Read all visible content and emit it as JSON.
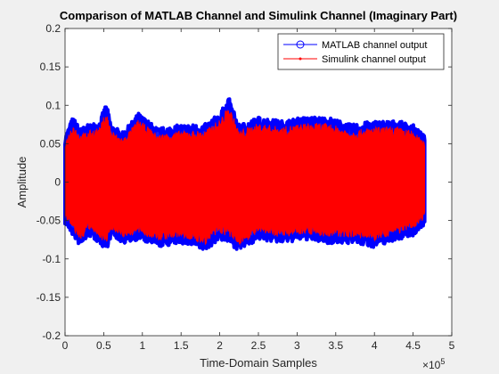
{
  "chart_data": {
    "type": "line",
    "title": "Comparison of MATLAB Channel and Simulink Channel (Imaginary Part)",
    "xlabel": "Time-Domain Samples",
    "ylabel": "Amplitude",
    "x_exponent_label": "×10",
    "x_exponent_value": "5",
    "xlim": [
      0,
      500000
    ],
    "ylim": [
      -0.2,
      0.2
    ],
    "x_ticks": [
      0,
      50000,
      100000,
      150000,
      200000,
      250000,
      300000,
      350000,
      400000,
      450000,
      500000
    ],
    "x_tick_labels": [
      "0",
      "0.5",
      "1",
      "1.5",
      "2",
      "2.5",
      "3",
      "3.5",
      "4",
      "4.5",
      "5"
    ],
    "y_ticks": [
      -0.2,
      -0.15,
      -0.1,
      -0.05,
      0,
      0.05,
      0.1,
      0.15,
      0.2
    ],
    "y_tick_labels": [
      "-0.2",
      "-0.15",
      "-0.1",
      "-0.05",
      "0",
      "0.05",
      "0.1",
      "0.15",
      "0.2"
    ],
    "grid": false,
    "legend_position": "top-right",
    "series": [
      {
        "name": "MATLAB channel output",
        "color": "#0000ff",
        "marker": "circle",
        "envelope_x": [
          0,
          10000,
          20000,
          30000,
          45000,
          53000,
          60000,
          75000,
          95000,
          120000,
          150000,
          180000,
          200000,
          212000,
          225000,
          250000,
          280000,
          310000,
          340000,
          370000,
          400000,
          430000,
          450000,
          465000
        ],
        "envelope_upper": [
          0.06,
          0.085,
          0.07,
          0.075,
          0.08,
          0.103,
          0.075,
          0.065,
          0.09,
          0.07,
          0.075,
          0.075,
          0.09,
          0.11,
          0.075,
          0.085,
          0.08,
          0.085,
          0.085,
          0.075,
          0.08,
          0.08,
          0.075,
          0.06
        ],
        "envelope_lower": [
          -0.055,
          -0.07,
          -0.085,
          -0.07,
          -0.08,
          -0.09,
          -0.07,
          -0.08,
          -0.075,
          -0.085,
          -0.08,
          -0.09,
          -0.075,
          -0.08,
          -0.09,
          -0.075,
          -0.08,
          -0.075,
          -0.08,
          -0.08,
          -0.085,
          -0.075,
          -0.07,
          -0.055
        ]
      },
      {
        "name": "Simulink channel output",
        "color": "#ff0000",
        "marker": "point",
        "envelope_x": [
          0,
          10000,
          20000,
          30000,
          45000,
          53000,
          60000,
          75000,
          95000,
          120000,
          150000,
          180000,
          200000,
          212000,
          225000,
          250000,
          280000,
          310000,
          340000,
          370000,
          400000,
          430000,
          450000,
          465000
        ],
        "envelope_upper": [
          0.052,
          0.077,
          0.062,
          0.067,
          0.072,
          0.094,
          0.067,
          0.057,
          0.082,
          0.062,
          0.067,
          0.067,
          0.082,
          0.1,
          0.067,
          0.077,
          0.072,
          0.077,
          0.077,
          0.067,
          0.072,
          0.072,
          0.067,
          0.052
        ],
        "envelope_lower": [
          -0.047,
          -0.062,
          -0.077,
          -0.062,
          -0.072,
          -0.082,
          -0.062,
          -0.072,
          -0.067,
          -0.077,
          -0.072,
          -0.082,
          -0.067,
          -0.072,
          -0.082,
          -0.067,
          -0.072,
          -0.067,
          -0.072,
          -0.072,
          -0.077,
          -0.067,
          -0.062,
          -0.047
        ]
      }
    ]
  }
}
